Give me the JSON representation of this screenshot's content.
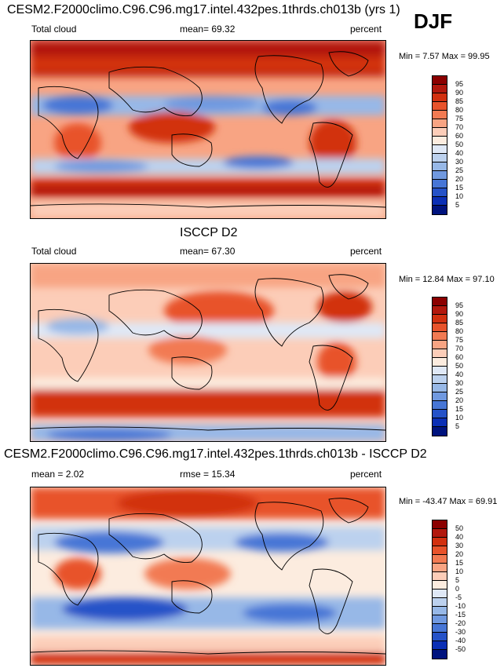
{
  "header": {
    "season": "DJF"
  },
  "panels": [
    {
      "title": "CESM2.F2000climo.C96.C96.mg17.intel.432pes.1thrds.ch013b (yrs 1)",
      "left_label": "Total cloud",
      "center_label": "mean=  69.32",
      "right_label": "percent",
      "minmax": "Min =  7.57 Max =  99.95"
    },
    {
      "title": "ISCCP D2",
      "left_label": "Total cloud",
      "center_label": "mean=  67.30",
      "right_label": "percent",
      "minmax": "Min =  12.84 Max =  97.10"
    },
    {
      "title": "CESM2.F2000climo.C96.C96.mg17.intel.432pes.1thrds.ch013b - ISCCP D2",
      "left_label": "mean =   2.02",
      "center_label": "rmse =  15.34",
      "right_label": "percent",
      "minmax": "Min = -43.47 Max =  69.91"
    }
  ],
  "chart_data": [
    {
      "type": "heatmap",
      "title": "CESM2.F2000climo.C96.C96.mg17.intel.432pes.1thrds.ch013b (yrs 1)",
      "variable": "Total cloud",
      "units": "percent",
      "mean": 69.32,
      "min": 7.57,
      "max": 99.95,
      "colorbar": {
        "labels": [
          "95",
          "90",
          "85",
          "80",
          "75",
          "70",
          "60",
          "50",
          "40",
          "30",
          "25",
          "20",
          "15",
          "10",
          "5"
        ],
        "colors": [
          "#8b0000",
          "#b2180d",
          "#d2300f",
          "#e8532b",
          "#f27a52",
          "#f8a483",
          "#fccdb8",
          "#fcecdf",
          "#dfe8f6",
          "#bcd1ee",
          "#97b8e7",
          "#7099e0",
          "#4776d6",
          "#2552c8",
          "#0b2fb5",
          "#00137e"
        ]
      }
    },
    {
      "type": "heatmap",
      "title": "ISCCP D2",
      "variable": "Total cloud",
      "units": "percent",
      "mean": 67.3,
      "min": 12.84,
      "max": 97.1,
      "colorbar": {
        "labels": [
          "95",
          "90",
          "85",
          "80",
          "75",
          "70",
          "60",
          "50",
          "40",
          "30",
          "25",
          "20",
          "15",
          "10",
          "5"
        ],
        "colors": [
          "#8b0000",
          "#b2180d",
          "#d2300f",
          "#e8532b",
          "#f27a52",
          "#f8a483",
          "#fccdb8",
          "#fcecdf",
          "#dfe8f6",
          "#bcd1ee",
          "#97b8e7",
          "#7099e0",
          "#4776d6",
          "#2552c8",
          "#0b2fb5",
          "#00137e"
        ]
      }
    },
    {
      "type": "heatmap",
      "title": "CESM2.F2000climo.C96.C96.mg17.intel.432pes.1thrds.ch013b - ISCCP D2",
      "units": "percent",
      "mean": 2.02,
      "rmse": 15.34,
      "min": -43.47,
      "max": 69.91,
      "colorbar": {
        "labels": [
          "50",
          "40",
          "30",
          "20",
          "15",
          "10",
          "5",
          "0",
          "-5",
          "-10",
          "-15",
          "-20",
          "-30",
          "-40",
          "-50"
        ],
        "colors": [
          "#8b0000",
          "#b2180d",
          "#d2300f",
          "#e8532b",
          "#f27a52",
          "#f8a483",
          "#fccdb8",
          "#fcecdf",
          "#dfe8f6",
          "#bcd1ee",
          "#97b8e7",
          "#7099e0",
          "#4776d6",
          "#2552c8",
          "#0b2fb5",
          "#00137e"
        ]
      }
    }
  ]
}
